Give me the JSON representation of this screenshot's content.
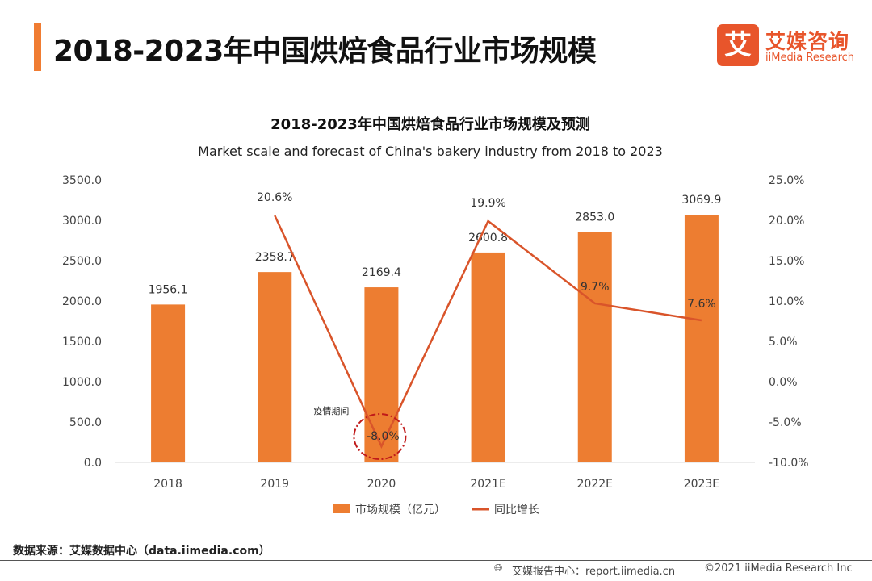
{
  "header": {
    "title": "2018-2023年中国烘焙食品行业市场规模"
  },
  "logo": {
    "mark": "艾",
    "cn": "艾媒咨询",
    "en": "iiMedia Research"
  },
  "colors": {
    "accent": "#f07c32",
    "bar": "#ed7d31",
    "line": "#d9542a",
    "annotation": "#c01a1a",
    "axis": "#d9d9d9"
  },
  "chart_data": {
    "type": "bar+line",
    "title": "2018-2023年中国烘焙食品行业市场规模及预测",
    "subtitle": "Market scale and forecast of China's bakery industry from 2018 to 2023",
    "categories": [
      "2018",
      "2019",
      "2020",
      "2021E",
      "2022E",
      "2023E"
    ],
    "series": [
      {
        "name": "市场规模（亿元）",
        "type": "bar",
        "axis": "left",
        "values": [
          1956.1,
          2358.7,
          2169.4,
          2600.8,
          2853.0,
          3069.9
        ],
        "labels": [
          "1956.1",
          "2358.7",
          "2169.4",
          "2600.8",
          "2853.0",
          "3069.9"
        ]
      },
      {
        "name": "同比增长",
        "type": "line",
        "axis": "right",
        "values": [
          null,
          20.6,
          -8.0,
          19.9,
          9.7,
          7.6
        ],
        "labels": [
          "",
          "20.6%",
          "-8.0%",
          "19.9%",
          "9.7%",
          "7.6%"
        ]
      }
    ],
    "y_left": {
      "min": 0,
      "max": 3500,
      "step": 500,
      "ticks": [
        "0.0",
        "500.0",
        "1000.0",
        "1500.0",
        "2000.0",
        "2500.0",
        "3000.0",
        "3500.0"
      ]
    },
    "y_right": {
      "min": -10,
      "max": 25,
      "step": 5,
      "ticks": [
        "-10.0%",
        "-5.0%",
        "0.0%",
        "5.0%",
        "10.0%",
        "15.0%",
        "20.0%",
        "25.0%"
      ]
    },
    "annotation": {
      "text": "疫情期间",
      "category": "2020"
    },
    "grid": false,
    "legend": "bottom-center"
  },
  "footer": {
    "source": "数据来源：艾媒数据中心（data.iimedia.com）",
    "report": "艾媒报告中心：report.iimedia.cn",
    "copyright": "©2021  iiMedia Research  Inc",
    "globe_icon": "globe-icon"
  }
}
